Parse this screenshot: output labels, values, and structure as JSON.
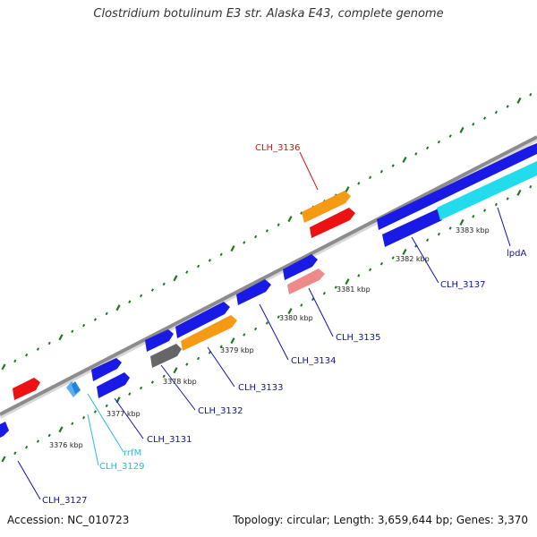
{
  "title": "Clostridium botulinum E3 str. Alaska E43, complete genome",
  "footer": {
    "accession": "Accession: NC_010723",
    "summary": "Topology: circular; Length: 3,659,644 bp; Genes: 3,370"
  },
  "colors": {
    "cds": "#1a1ae6",
    "rrna": "#22dcee",
    "trna": "#35b8e8",
    "rearrangement": "#ee1111",
    "orange": "#f59a12",
    "gray": "#666666",
    "pink": "#ee8a8a",
    "backbone": "#8c8c8c",
    "tick": "#1a7a1a",
    "label_default": "#1010aa",
    "label_red": "#dd1111",
    "label_cyan": "#22c0e0"
  },
  "kbp_labels": [
    "3376 kbp",
    "3377 kbp",
    "3378 kbp",
    "3379 kbp",
    "3380 kbp",
    "3381 kbp",
    "3382 kbp",
    "3383 kbp"
  ],
  "gene_labels": [
    "CLH_3127",
    "CLH_3129",
    "rrfM",
    "CLH_3131",
    "CLH_3132",
    "CLH_3133",
    "CLH_3134",
    "CLH_3135",
    "CLH_3136",
    "CLH_3137",
    "lpdA"
  ]
}
